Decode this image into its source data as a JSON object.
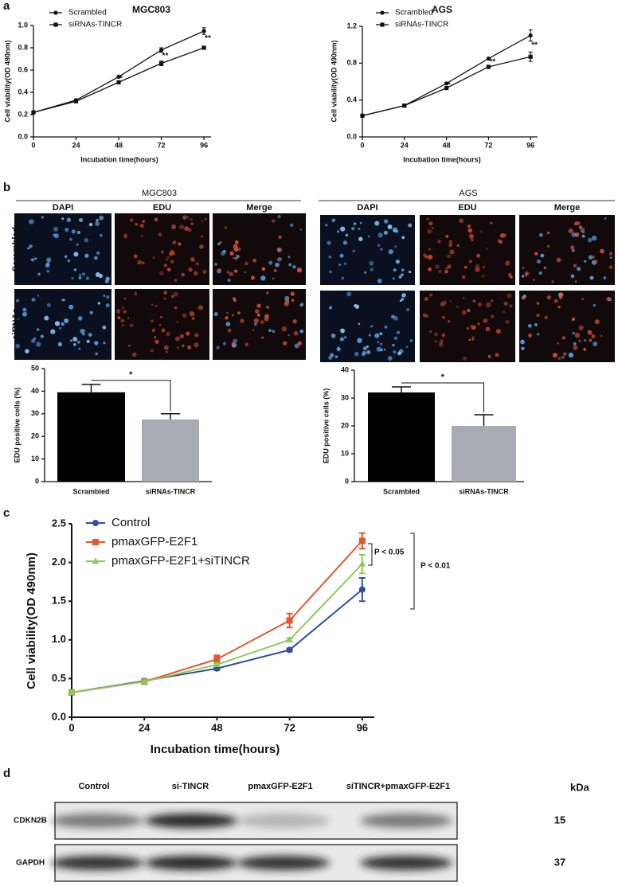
{
  "panel_labels": [
    "a",
    "b",
    "c",
    "d"
  ],
  "chart_data": [
    {
      "type": "line",
      "title": "MGC803",
      "x": [
        0,
        24,
        48,
        72,
        96
      ],
      "xlim": [
        0,
        100
      ],
      "xticks": [
        0,
        24,
        48,
        72,
        96
      ],
      "ylim": [
        0,
        1.0
      ],
      "yticks": [
        {
          "value": 0,
          "label": "0.0"
        },
        0.2,
        0.4,
        0.6,
        0.8,
        {
          "value": 1.0,
          "label": "1.0"
        }
      ],
      "x_label": "Incubation time(hours)",
      "y_label": "Cell viability(OD 490nm)",
      "series": [
        {
          "name": "Scrambled",
          "color": "#111111",
          "marker": "circle",
          "values": [
            0.22,
            0.33,
            0.54,
            0.78,
            0.95
          ],
          "errors": [
            0.01,
            0.01,
            0.01,
            0.02,
            0.03
          ]
        },
        {
          "name": "siRNAs-TINCR",
          "color": "#111111",
          "marker": "square",
          "values": [
            0.22,
            0.32,
            0.49,
            0.66,
            0.8
          ],
          "errors": [
            0.01,
            0.01,
            0.01,
            0.02,
            0.01
          ]
        }
      ],
      "annotations": [
        {
          "text": "*",
          "x": 48
        },
        {
          "text": "**",
          "x": 72
        },
        {
          "text": "**",
          "x": 96
        }
      ]
    },
    {
      "type": "line",
      "title": "AGS",
      "x": [
        0,
        24,
        48,
        72,
        96
      ],
      "xlim": [
        0,
        100
      ],
      "xticks": [
        0,
        24,
        48,
        72,
        96
      ],
      "ylim": [
        0,
        1.2
      ],
      "yticks": [
        {
          "value": 0,
          "label": "0.0"
        },
        0.4,
        0.8,
        1.2
      ],
      "x_label": "Incubation time(hours)",
      "y_label": "Cell viability(OD 490nm)",
      "series": [
        {
          "name": "Scrambled",
          "color": "#111111",
          "marker": "circle",
          "values": [
            0.23,
            0.34,
            0.58,
            0.85,
            1.1
          ],
          "errors": [
            0.01,
            0.01,
            0.01,
            0.01,
            0.06
          ]
        },
        {
          "name": "siRNAs-TINCR",
          "color": "#111111",
          "marker": "square",
          "values": [
            0.23,
            0.34,
            0.53,
            0.76,
            0.87
          ],
          "errors": [
            0.01,
            0.01,
            0.01,
            0.01,
            0.05
          ]
        }
      ],
      "annotations": [
        {
          "text": "*",
          "x": 48
        },
        {
          "text": "**",
          "x": 72
        },
        {
          "text": "**",
          "x": 96
        }
      ]
    },
    {
      "type": "bar",
      "categories": [
        "Scrambled",
        "siRNAs-TINCR"
      ],
      "values": [
        39.5,
        27.5
      ],
      "errors": [
        3.5,
        2.5
      ],
      "colors": [
        "#000000",
        "#a7acb4"
      ],
      "ylim": [
        0,
        50
      ],
      "yticks": [
        0,
        10,
        20,
        30,
        40,
        50
      ],
      "y_label": "EDU positive cells (%)",
      "annotations": [
        "*"
      ]
    },
    {
      "type": "bar",
      "categories": [
        "Scrambled",
        "siRNAs-TINCR"
      ],
      "values": [
        32,
        20
      ],
      "errors": [
        2,
        4
      ],
      "colors": [
        "#000000",
        "#a7acb4"
      ],
      "ylim": [
        0,
        40
      ],
      "yticks": [
        0,
        10,
        20,
        30,
        40
      ],
      "y_label": "EDU positive cells (%)",
      "annotations": [
        "*"
      ]
    },
    {
      "type": "line",
      "x": [
        0,
        24,
        48,
        72,
        96
      ],
      "xlim": [
        0,
        100
      ],
      "xticks": [
        0,
        24,
        48,
        72,
        96
      ],
      "ylim": [
        0,
        2.5
      ],
      "yticks": [
        {
          "value": 0,
          "label": "0.0"
        },
        0.5,
        {
          "value": 1.0,
          "label": "1.0"
        },
        1.5,
        {
          "value": 2.0,
          "label": "2.0"
        },
        2.5
      ],
      "x_label": "Incubation time(hours)",
      "y_label": "Cell viability(OD 490nm)",
      "series": [
        {
          "name": "Control",
          "color": "#2e4fa3",
          "marker": "circle",
          "values": [
            0.32,
            0.47,
            0.63,
            0.87,
            1.65
          ],
          "errors": [
            0.02,
            0.02,
            0.02,
            0.02,
            0.15
          ]
        },
        {
          "name": "pmaxGFP-E2F1",
          "color": "#e5562b",
          "marker": "square",
          "values": [
            0.32,
            0.46,
            0.75,
            1.25,
            2.28
          ],
          "errors": [
            0.02,
            0.02,
            0.05,
            0.09,
            0.1
          ]
        },
        {
          "name": "pmaxGFP-E2F1+siTINCR",
          "color": "#8fc95a",
          "marker": "triangle",
          "values": [
            0.32,
            0.46,
            0.68,
            1.0,
            1.98
          ],
          "errors": [
            0.02,
            0.02,
            0.02,
            0.02,
            0.12
          ]
        }
      ],
      "annotations": [
        "P < 0.05",
        "P < 0.01"
      ]
    }
  ],
  "microscopy": {
    "groups": [
      {
        "title": "MGC803",
        "channels": [
          "DAPI",
          "EDU",
          "Merge"
        ]
      },
      {
        "title": "AGS",
        "channels": [
          "DAPI",
          "EDU",
          "Merge"
        ]
      }
    ],
    "rows": [
      "Scrambled",
      "siRNAs"
    ]
  },
  "western_blot": {
    "lanes": [
      "Control",
      "si-TINCR",
      "pmaxGFP-E2F1",
      "siTINCR+pmaxGFP-E2F1"
    ],
    "unit": "kDa",
    "proteins": [
      {
        "name": "CDKN2B",
        "size": "15"
      },
      {
        "name": "GAPDH",
        "size": "37"
      }
    ]
  }
}
